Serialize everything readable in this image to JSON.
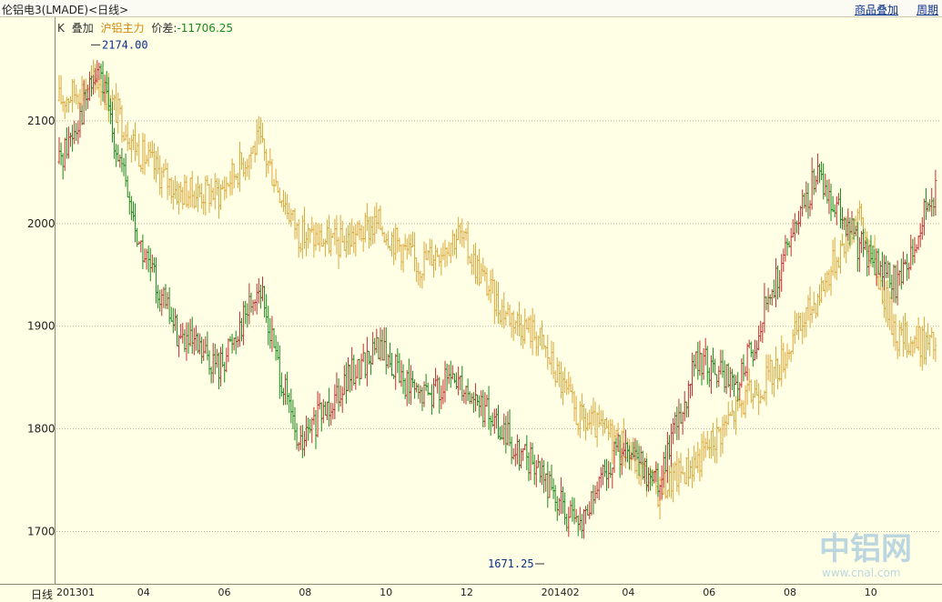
{
  "header": {
    "title": "伦铝电3(LMADE)<日线>",
    "overlay_link": "商品叠加",
    "period_link": "周期"
  },
  "legend": {
    "k_label": "K",
    "overlay_label": "叠加",
    "overlay_series": "沪铝主力",
    "diff_label": "价差:",
    "diff_value": "-11706.25"
  },
  "x_axis_type": "日线",
  "watermark": {
    "cn": "中铝网",
    "url": "www.cnal.com"
  },
  "colors": {
    "background": "#ffffe6",
    "up": "#c03030",
    "down": "#1a8a1a",
    "overlay": "#d9a83c",
    "grid": "#b8b8a0",
    "high_low_label": "#0b2f8a"
  },
  "chart_data": {
    "type": "line",
    "title": "伦铝电3(LMADE)<日线>",
    "xlabel": "日线",
    "ylabel": "",
    "ylim": [
      1650,
      2200
    ],
    "yticks": [
      1700,
      1800,
      1900,
      2000,
      2100
    ],
    "xtick_labels": [
      "201301",
      "04",
      "06",
      "08",
      "10",
      "12",
      "201402",
      "04",
      "06",
      "08",
      "10"
    ],
    "grid": true,
    "annotations": [
      {
        "text": "2174.00",
        "x": "201302",
        "y": 2174.0
      },
      {
        "text": "1671.25",
        "x": "201402",
        "y": 1671.25
      }
    ],
    "series": [
      {
        "type": "ohlc",
        "x": [
          "201301",
          "201302",
          "201303",
          "201304",
          "201305",
          "201306",
          "201307",
          "201308",
          "201309",
          "201310",
          "201311",
          "201312",
          "201401",
          "201402",
          "201403",
          "201404",
          "201405",
          "201406",
          "201407",
          "201408",
          "201409",
          "201410",
          "201411"
        ],
        "values": [
          2060,
          2150,
          1980,
          1890,
          1860,
          1940,
          1780,
          1840,
          1880,
          1830,
          1850,
          1800,
          1760,
          1700,
          1780,
          1750,
          1870,
          1840,
          1950,
          2050,
          1980,
          1940,
          2040
        ]
      },
      {
        "name": "沪铝主力",
        "type": "ohlc",
        "x": [
          "201301",
          "201302",
          "201303",
          "201304",
          "201305",
          "201306",
          "201307",
          "201308",
          "201309",
          "201310",
          "201311",
          "201312",
          "201401",
          "201402",
          "201403",
          "201404",
          "201405",
          "201406",
          "201407",
          "201408",
          "201409",
          "201410",
          "201411"
        ],
        "values": [
          2120,
          2140,
          2070,
          2030,
          2030,
          2080,
          1990,
          1980,
          2000,
          1960,
          1990,
          1920,
          1890,
          1810,
          1790,
          1740,
          1770,
          1820,
          1860,
          1930,
          2010,
          1890,
          1880
        ]
      }
    ]
  }
}
